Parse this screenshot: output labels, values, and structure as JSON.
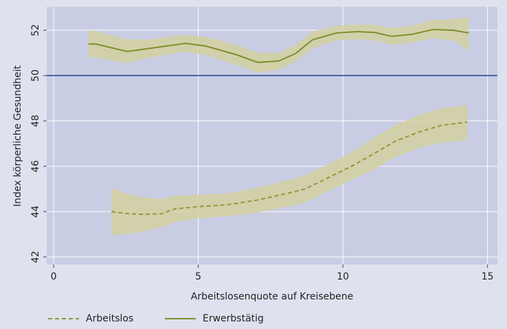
{
  "chart_data": {
    "type": "line",
    "x_label": "Arbeitslosenquote auf Kreisebene",
    "y_label": "Index körperliche Gesundheit",
    "xlim": [
      -0.24,
      15.34
    ],
    "ylim": [
      41.67,
      53.03
    ],
    "xticks": [
      0,
      5,
      10,
      15
    ],
    "yticks": [
      42,
      44,
      46,
      48,
      50,
      52
    ],
    "grid": true,
    "reference_line": 50,
    "reference_color": "#1f3f8f",
    "band_color": "#d3d0a0",
    "series": [
      {
        "name": "Arbeitslos",
        "color": "#8a9a3a",
        "dash": true,
        "x": [
          2.0,
          2.5,
          3.0,
          3.7,
          4.2,
          5.0,
          6.0,
          7.0,
          8.0,
          8.7,
          9.5,
          10.3,
          11.0,
          11.8,
          12.6,
          13.4,
          14.3
        ],
        "values": [
          44.0,
          43.92,
          43.88,
          43.9,
          44.12,
          44.22,
          44.3,
          44.5,
          44.78,
          45.0,
          45.5,
          46.0,
          46.5,
          47.1,
          47.5,
          47.8,
          47.95
        ],
        "upper": [
          45.05,
          44.8,
          44.65,
          44.55,
          44.7,
          44.75,
          44.8,
          45.05,
          45.35,
          45.6,
          46.1,
          46.6,
          47.2,
          47.8,
          48.25,
          48.55,
          48.7
        ],
        "lower": [
          42.95,
          43.0,
          43.1,
          43.3,
          43.55,
          43.7,
          43.8,
          43.95,
          44.2,
          44.4,
          44.9,
          45.4,
          45.8,
          46.4,
          46.8,
          47.05,
          47.15
        ]
      },
      {
        "name": "Erwerbstätig",
        "color": "#7d8f2e",
        "dash": false,
        "x": [
          1.2,
          1.47,
          2.54,
          3.37,
          4.56,
          5.27,
          6.34,
          7.05,
          7.77,
          8.36,
          8.95,
          9.78,
          10.5,
          11.09,
          11.69,
          12.4,
          13.1,
          13.82,
          14.35
        ],
        "values": [
          51.39,
          51.39,
          51.06,
          51.21,
          51.42,
          51.3,
          50.91,
          50.58,
          50.64,
          50.97,
          51.58,
          51.88,
          51.94,
          51.9,
          51.73,
          51.82,
          52.03,
          52.0,
          51.88
        ],
        "upper": [
          52.0,
          51.95,
          51.6,
          51.6,
          51.8,
          51.7,
          51.35,
          51.0,
          51.0,
          51.35,
          51.95,
          52.2,
          52.25,
          52.25,
          52.1,
          52.2,
          52.45,
          52.5,
          52.55
        ],
        "lower": [
          50.8,
          50.8,
          50.55,
          50.8,
          51.05,
          50.9,
          50.45,
          50.15,
          50.25,
          50.6,
          51.2,
          51.55,
          51.6,
          51.55,
          51.35,
          51.45,
          51.65,
          51.55,
          51.1
        ]
      }
    ]
  }
}
